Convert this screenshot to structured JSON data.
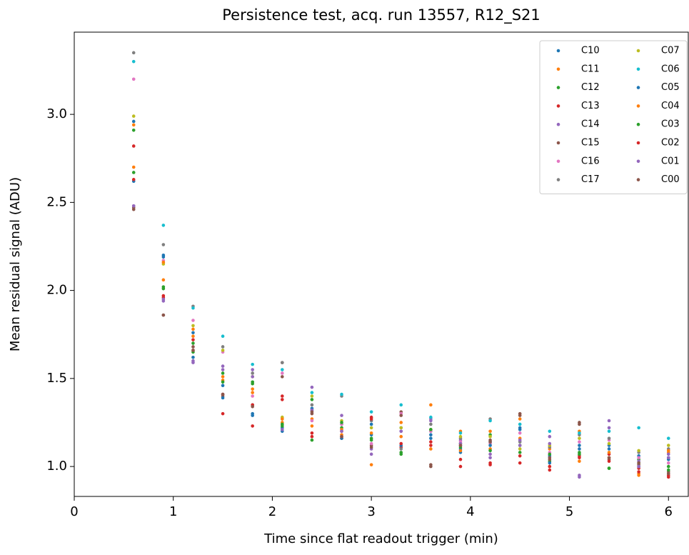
{
  "chart_data": {
    "type": "scatter",
    "title": "Persistence test, acq. run 13557, R12_S21",
    "x_label": "Time since flat readout trigger (min)",
    "y_label": "Mean residual signal (ADU)",
    "x": [
      0.6,
      0.9,
      1.2,
      1.5,
      1.8,
      2.1,
      2.4,
      2.7,
      3.0,
      3.3,
      3.6,
      3.9,
      4.2,
      4.5,
      4.8,
      5.1,
      5.4,
      5.7,
      6.0
    ],
    "xlim": [
      0,
      6.2
    ],
    "ylim": [
      0.83,
      3.467
    ],
    "xticks": [
      0,
      1,
      2,
      3,
      4,
      5,
      6
    ],
    "yticks": [
      {
        "value": 1,
        "label": "1.0"
      },
      1.5,
      {
        "value": 2,
        "label": "2.0"
      },
      2.5,
      {
        "value": 3,
        "label": "3.0"
      }
    ],
    "grid": false,
    "legend": "upper right",
    "series": [
      {
        "name": "C10",
        "color": "#1f77b4",
        "values": [
          2.96,
          2.2,
          1.76,
          1.46,
          1.3,
          1.22,
          1.33,
          1.24,
          1.18,
          1.22,
          1.18,
          1.1,
          1.14,
          1.22,
          1.06,
          1.1,
          1.12,
          1.06,
          1.05
        ]
      },
      {
        "name": "C11",
        "color": "#ff7f0e",
        "values": [
          2.94,
          2.06,
          1.78,
          1.51,
          1.42,
          1.25,
          1.27,
          1.18,
          1.01,
          1.25,
          1.35,
          1.2,
          1.2,
          1.27,
          1.1,
          1.2,
          1.05,
          0.96,
          1.08
        ]
      },
      {
        "name": "C12",
        "color": "#2ca02c",
        "values": [
          2.91,
          2.02,
          1.7,
          1.53,
          1.47,
          1.24,
          1.15,
          1.22,
          1.15,
          1.08,
          1.2,
          1.13,
          1.18,
          1.12,
          1.03,
          1.08,
          0.99,
          1.04,
          1.0
        ]
      },
      {
        "name": "C13",
        "color": "#d62728",
        "values": [
          2.82,
          1.97,
          1.72,
          1.3,
          1.23,
          1.4,
          1.17,
          1.2,
          1.28,
          1.11,
          1.12,
          1.0,
          1.02,
          1.06,
          0.98,
          1.06,
          1.07,
          0.99,
          0.95
        ]
      },
      {
        "name": "C14",
        "color": "#9467bd",
        "values": [
          2.48,
          1.94,
          1.59,
          1.57,
          1.55,
          1.27,
          1.45,
          1.29,
          1.1,
          1.2,
          1.27,
          1.15,
          1.07,
          1.12,
          1.17,
          0.94,
          1.26,
          1.03,
          1.07
        ]
      },
      {
        "name": "C15",
        "color": "#8c564b",
        "values": [
          2.47,
          1.86,
          1.68,
          1.4,
          1.35,
          1.59,
          1.3,
          1.16,
          1.12,
          1.31,
          1.01,
          1.12,
          1.15,
          1.29,
          1.04,
          1.25,
          1.04,
          1.01,
          0.97
        ]
      },
      {
        "name": "C16",
        "color": "#e377c2",
        "values": [
          3.2,
          2.17,
          1.83,
          1.65,
          1.4,
          1.53,
          1.26,
          1.24,
          1.13,
          1.3,
          1.2,
          1.14,
          1.13,
          1.19,
          1.08,
          1.14,
          1.15,
          1.05,
          1.02
        ]
      },
      {
        "name": "C17",
        "color": "#7f7f7f",
        "values": [
          3.35,
          2.26,
          1.91,
          1.68,
          1.53,
          1.59,
          1.35,
          1.4,
          1.26,
          1.1,
          1.24,
          1.16,
          1.27,
          1.14,
          1.11,
          1.18,
          1.16,
          1.08,
          1.1
        ]
      },
      {
        "name": "C07",
        "color": "#bcbd22",
        "values": [
          2.99,
          2.15,
          1.8,
          1.66,
          1.51,
          1.28,
          1.4,
          1.26,
          1.22,
          1.22,
          1.21,
          1.17,
          1.17,
          1.1,
          1.12,
          1.16,
          1.13,
          1.09,
          1.12
        ]
      },
      {
        "name": "C06",
        "color": "#17becf",
        "values": [
          3.3,
          2.37,
          1.9,
          1.74,
          1.58,
          1.55,
          1.42,
          1.41,
          1.31,
          1.35,
          1.28,
          1.19,
          1.26,
          1.24,
          1.2,
          1.19,
          1.2,
          1.22,
          1.16
        ]
      },
      {
        "name": "C05",
        "color": "#1f77b4",
        "values": [
          2.62,
          2.19,
          1.62,
          1.39,
          1.29,
          1.2,
          1.32,
          1.16,
          1.24,
          1.12,
          1.16,
          1.08,
          1.12,
          1.21,
          1.02,
          1.12,
          1.1,
          1.0,
          1.04
        ]
      },
      {
        "name": "C04",
        "color": "#ff7f0e",
        "values": [
          2.7,
          2.16,
          1.74,
          1.49,
          1.44,
          1.27,
          1.23,
          1.21,
          1.19,
          1.17,
          1.1,
          1.09,
          1.1,
          1.16,
          1.0,
          1.03,
          1.08,
          0.95,
          1.09
        ]
      },
      {
        "name": "C03",
        "color": "#2ca02c",
        "values": [
          2.67,
          2.01,
          1.65,
          1.48,
          1.48,
          1.23,
          1.38,
          1.25,
          1.16,
          1.07,
          1.21,
          1.11,
          1.09,
          1.08,
          1.07,
          1.07,
          0.99,
          1.02,
          0.98
        ]
      },
      {
        "name": "C02",
        "color": "#d62728",
        "values": [
          2.63,
          1.96,
          1.66,
          1.41,
          1.35,
          1.38,
          1.19,
          1.17,
          1.27,
          1.13,
          1.14,
          1.04,
          1.01,
          1.02,
          1.0,
          1.05,
          1.03,
          0.97,
          0.94
        ]
      },
      {
        "name": "C01",
        "color": "#9467bd",
        "values": [
          2.48,
          1.95,
          1.6,
          1.55,
          1.51,
          1.21,
          1.32,
          1.2,
          1.07,
          1.2,
          1.26,
          1.13,
          1.05,
          1.15,
          1.13,
          0.95,
          1.22,
          1.0,
          1.05
        ]
      },
      {
        "name": "C00",
        "color": "#8c564b",
        "values": [
          2.46,
          1.86,
          1.66,
          1.41,
          1.34,
          1.51,
          1.31,
          1.17,
          1.11,
          1.29,
          1.0,
          1.12,
          1.14,
          1.3,
          1.05,
          1.24,
          1.05,
          1.02,
          0.96
        ]
      }
    ]
  }
}
